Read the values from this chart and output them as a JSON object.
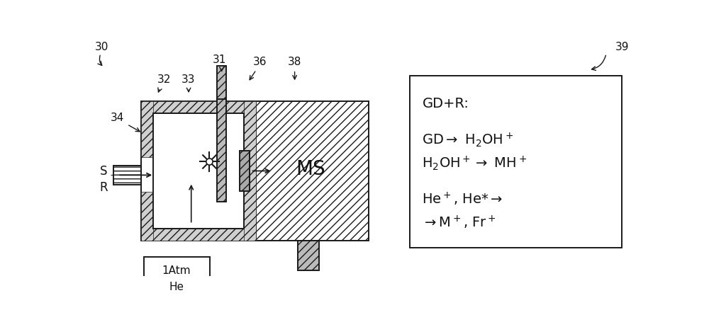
{
  "bg_color": "#ffffff",
  "fig_bg": "#ffffff",
  "label_30": "30",
  "label_31": "31",
  "label_32": "32",
  "label_33": "33",
  "label_34": "34",
  "label_36": "36",
  "label_38": "38",
  "label_39": "39",
  "label_S": "S",
  "label_R": "R",
  "label_MS": "MS",
  "atm_box_line1": "1Atm",
  "atm_box_line2": "He",
  "line_color": "#1a1a1a",
  "hatch_color": "#555555",
  "text_color": "#111111"
}
